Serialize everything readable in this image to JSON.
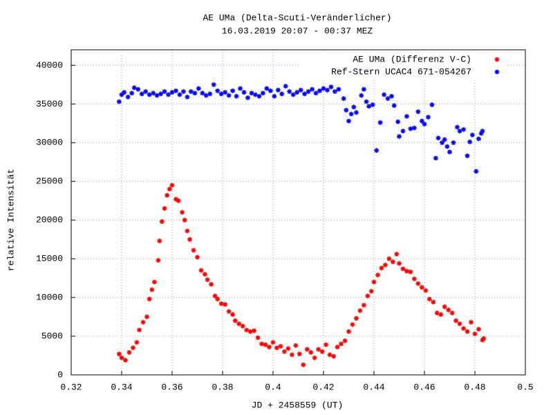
{
  "chart_data": {
    "type": "scatter",
    "title": "AE UMa (Delta-Scuti-Veränderlicher)",
    "subtitle": "16.03.2019 20:07 - 00:37 MEZ",
    "x_label": "JD + 2458559 (UT)",
    "y_label": "relative Intensität",
    "xlim": [
      0.32,
      0.5
    ],
    "ylim": [
      0,
      42000
    ],
    "xticks": [
      0.32,
      0.34,
      0.36,
      0.38,
      0.4,
      0.42,
      0.44,
      0.46,
      0.48,
      0.5
    ],
    "yticks": [
      0,
      5000,
      10000,
      15000,
      20000,
      25000,
      30000,
      35000,
      40000
    ],
    "grid": true,
    "legend_position": "top-right",
    "series": [
      {
        "name": "AE UMa (Differenz V-C)",
        "color": "#ff0000",
        "x": [
          0.339,
          0.34,
          0.3415,
          0.343,
          0.3445,
          0.346,
          0.347,
          0.3485,
          0.35,
          0.351,
          0.352,
          0.353,
          0.3545,
          0.355,
          0.356,
          0.357,
          0.358,
          0.359,
          0.36,
          0.3615,
          0.3625,
          0.364,
          0.365,
          0.366,
          0.367,
          0.3685,
          0.37,
          0.3715,
          0.373,
          0.374,
          0.3755,
          0.377,
          0.378,
          0.3795,
          0.381,
          0.3825,
          0.384,
          0.385,
          0.3865,
          0.388,
          0.3895,
          0.391,
          0.3925,
          0.394,
          0.3955,
          0.397,
          0.3985,
          0.4,
          0.4015,
          0.403,
          0.4045,
          0.406,
          0.4075,
          0.409,
          0.4105,
          0.412,
          0.4135,
          0.415,
          0.4165,
          0.418,
          0.4195,
          0.421,
          0.4225,
          0.424,
          0.4255,
          0.427,
          0.4285,
          0.43,
          0.4315,
          0.433,
          0.4345,
          0.436,
          0.4375,
          0.439,
          0.44,
          0.4415,
          0.443,
          0.4445,
          0.446,
          0.4475,
          0.449,
          0.45,
          0.4515,
          0.453,
          0.4545,
          0.456,
          0.4575,
          0.459,
          0.4605,
          0.462,
          0.4635,
          0.465,
          0.4665,
          0.468,
          0.4695,
          0.471,
          0.4725,
          0.474,
          0.4755,
          0.477,
          0.4785,
          0.48,
          0.4815,
          0.483,
          0.4835
        ],
        "values": [
          2700,
          2200,
          1900,
          2900,
          3500,
          4200,
          5800,
          6800,
          7500,
          9800,
          11000,
          12000,
          14800,
          17300,
          19800,
          21500,
          23200,
          24000,
          24500,
          22700,
          22500,
          21000,
          20000,
          18600,
          17500,
          16100,
          15200,
          13500,
          13000,
          12300,
          11700,
          10200,
          9800,
          9200,
          9100,
          8200,
          7800,
          7000,
          6600,
          6300,
          5800,
          5600,
          5700,
          4800,
          4000,
          3900,
          3600,
          4200,
          3500,
          3700,
          3000,
          3400,
          2600,
          3800,
          2700,
          1300,
          3300,
          2900,
          2200,
          3300,
          3000,
          3900,
          2600,
          2400,
          3600,
          4000,
          4400,
          5600,
          6500,
          7300,
          8300,
          9000,
          10200,
          10800,
          12000,
          12900,
          13800,
          14200,
          15000,
          14600,
          15600,
          14400,
          13700,
          13400,
          13300,
          12400,
          11800,
          11300,
          10900,
          9800,
          9400,
          8000,
          7800,
          8800,
          8400,
          8000,
          7000,
          6600,
          6000,
          5600,
          6800,
          5300,
          5900,
          4500,
          4700
        ]
      },
      {
        "name": "Ref-Stern UCAC4 671-054267",
        "color": "#0000ff",
        "x": [
          0.339,
          0.34,
          0.341,
          0.3425,
          0.344,
          0.345,
          0.3465,
          0.348,
          0.3495,
          0.351,
          0.3525,
          0.354,
          0.3555,
          0.357,
          0.3585,
          0.36,
          0.3615,
          0.363,
          0.3645,
          0.366,
          0.3675,
          0.369,
          0.3705,
          0.372,
          0.3735,
          0.375,
          0.3765,
          0.378,
          0.3795,
          0.381,
          0.3825,
          0.384,
          0.3855,
          0.387,
          0.3885,
          0.39,
          0.3915,
          0.393,
          0.3945,
          0.396,
          0.3975,
          0.399,
          0.4005,
          0.402,
          0.4035,
          0.405,
          0.4065,
          0.408,
          0.4095,
          0.411,
          0.4125,
          0.414,
          0.4155,
          0.417,
          0.4185,
          0.42,
          0.4215,
          0.423,
          0.4245,
          0.426,
          0.428,
          0.429,
          0.43,
          0.431,
          0.432,
          0.433,
          0.435,
          0.436,
          0.437,
          0.438,
          0.4395,
          0.441,
          0.4425,
          0.444,
          0.4455,
          0.447,
          0.448,
          0.4495,
          0.45,
          0.4515,
          0.453,
          0.4545,
          0.456,
          0.4575,
          0.459,
          0.46,
          0.4615,
          0.463,
          0.4645,
          0.4655,
          0.467,
          0.468,
          0.469,
          0.47,
          0.4715,
          0.473,
          0.474,
          0.4755,
          0.477,
          0.478,
          0.479,
          0.4805,
          0.4815,
          0.4825,
          0.483
        ],
        "values": [
          35300,
          36200,
          36500,
          35900,
          36400,
          37100,
          36900,
          36300,
          36600,
          36200,
          36400,
          36100,
          36300,
          36600,
          36200,
          36500,
          36700,
          36200,
          36600,
          35900,
          36600,
          36400,
          37000,
          36400,
          36100,
          36300,
          37500,
          36700,
          36300,
          36500,
          36100,
          36700,
          36000,
          37000,
          36500,
          35800,
          36400,
          36200,
          36000,
          36400,
          37000,
          36700,
          36000,
          36800,
          36300,
          37300,
          36600,
          36200,
          36500,
          36800,
          36300,
          36600,
          36900,
          36400,
          36700,
          37000,
          36800,
          37200,
          36600,
          36900,
          35700,
          34200,
          32800,
          33700,
          34600,
          33900,
          36100,
          36900,
          35300,
          34700,
          34900,
          29000,
          32600,
          36200,
          35700,
          36000,
          34800,
          32700,
          30800,
          31500,
          33400,
          31800,
          31900,
          34000,
          32800,
          32400,
          33300,
          34900,
          28000,
          30600,
          30000,
          30400,
          29500,
          28800,
          30000,
          32000,
          31500,
          31700,
          28300,
          30100,
          31000,
          26300,
          30500,
          31200,
          31500
        ]
      }
    ]
  }
}
